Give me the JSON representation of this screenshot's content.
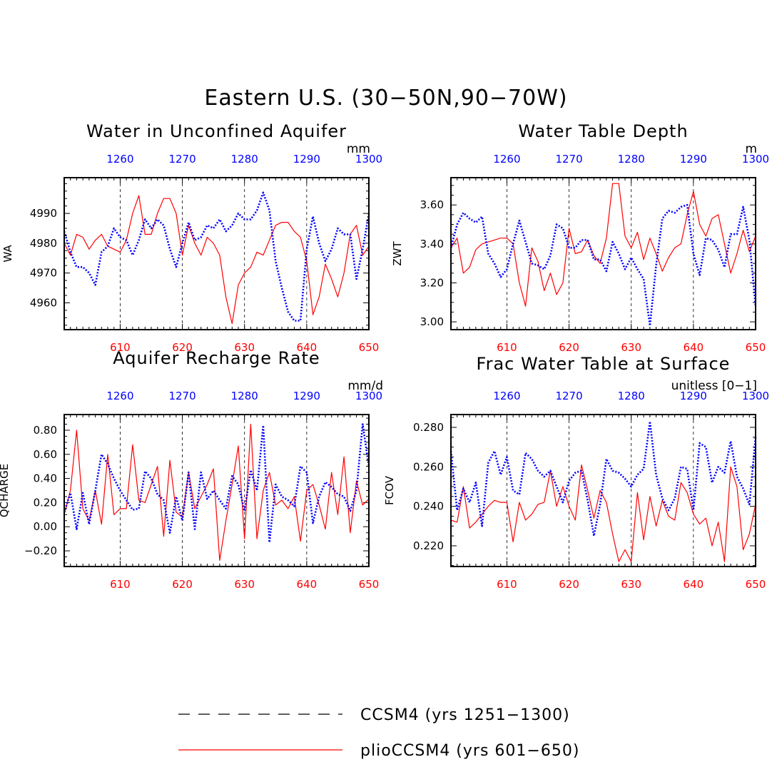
{
  "main_title": "Eastern U.S. (30−50N,90−70W)",
  "colors": {
    "red": "#ff0000",
    "blue": "#0000ff",
    "black": "#000000"
  },
  "legend": [
    {
      "style": "dashed",
      "label": "CCSM4 (yrs 1251−1300)"
    },
    {
      "style": "solid-red",
      "label": "plioCCSM4 (yrs 601−650)"
    }
  ],
  "chart_data": [
    {
      "type": "line",
      "title": "Water in Unconfined Aquifer",
      "units": "mm",
      "ylabel": "WA",
      "ylim": [
        4951,
        5002
      ],
      "yticks": [
        4960,
        4970,
        4980,
        4990
      ],
      "ytick_labels": [
        "4960",
        "4970",
        "4980",
        "4990"
      ],
      "x_bottom_range": [
        601,
        650
      ],
      "x_bottom_ticks": [
        610,
        620,
        630,
        640,
        650
      ],
      "x_top_ticks": [
        1260,
        1270,
        1280,
        1290,
        1300
      ],
      "series": [
        {
          "name": "plioCCSM4 (yrs 601−650)",
          "color": "#ff0000",
          "style": "solid",
          "x_start": 601,
          "values": [
            4980,
            4976,
            4983,
            4982,
            4978,
            4981,
            4983,
            4979,
            4978,
            4977,
            4981,
            4990,
            4996,
            4983,
            4983,
            4990,
            4995,
            4995,
            4990,
            4976,
            4986,
            4980,
            4976,
            4982,
            4980,
            4976,
            4962,
            4953,
            4966,
            4970,
            4972,
            4977,
            4976,
            4981,
            4986,
            4987,
            4987,
            4984,
            4982,
            4974,
            4956,
            4962,
            4973,
            4968,
            4962,
            4970,
            4983,
            4986,
            4976,
            4979
          ]
        },
        {
          "name": "CCSM4 (yrs 1251−1300)",
          "color": "#0000ff",
          "style": "dotted",
          "x_start": 1251,
          "values": [
            4984,
            4977,
            4972,
            4972,
            4970,
            4966,
            4977,
            4979,
            4985,
            4982,
            4981,
            4976,
            4981,
            4988,
            4985,
            4988,
            4986,
            4978,
            4972,
            4980,
            4987,
            4981,
            4982,
            4986,
            4985,
            4988,
            4984,
            4986,
            4990,
            4988,
            4988,
            4991,
            4997,
            4991,
            4974,
            4965,
            4957,
            4954,
            4954,
            4978,
            4989,
            4980,
            4974,
            4978,
            4985,
            4983,
            4983,
            4968,
            4978,
            4990
          ]
        }
      ]
    },
    {
      "type": "line",
      "title": "Water Table Depth",
      "units": "m",
      "ylabel": "ZWT",
      "ylim": [
        2.96,
        3.74
      ],
      "yticks": [
        3.0,
        3.2,
        3.4,
        3.6
      ],
      "ytick_labels": [
        "3.00",
        "3.20",
        "3.40",
        "3.60"
      ],
      "x_bottom_range": [
        601,
        650
      ],
      "x_bottom_ticks": [
        610,
        620,
        630,
        640,
        650
      ],
      "x_top_ticks": [
        1260,
        1270,
        1280,
        1290,
        1300
      ],
      "series": [
        {
          "name": "plioCCSM4 (yrs 601−650)",
          "color": "#ff0000",
          "style": "solid",
          "x_start": 601,
          "values": [
            3.38,
            3.43,
            3.25,
            3.28,
            3.37,
            3.4,
            3.41,
            3.42,
            3.43,
            3.43,
            3.4,
            3.2,
            3.08,
            3.38,
            3.31,
            3.16,
            3.25,
            3.14,
            3.2,
            3.48,
            3.35,
            3.36,
            3.42,
            3.34,
            3.3,
            3.43,
            3.71,
            3.71,
            3.44,
            3.38,
            3.46,
            3.32,
            3.43,
            3.35,
            3.26,
            3.33,
            3.38,
            3.4,
            3.55,
            3.67,
            3.5,
            3.44,
            3.53,
            3.55,
            3.4,
            3.25,
            3.35,
            3.47,
            3.36,
            3.44
          ]
        },
        {
          "name": "CCSM4 (yrs 1251−1300)",
          "color": "#0000ff",
          "style": "dotted",
          "x_start": 1251,
          "values": [
            3.38,
            3.5,
            3.56,
            3.53,
            3.51,
            3.54,
            3.35,
            3.3,
            3.23,
            3.27,
            3.4,
            3.52,
            3.41,
            3.3,
            3.29,
            3.27,
            3.34,
            3.5,
            3.48,
            3.38,
            3.38,
            3.42,
            3.42,
            3.32,
            3.32,
            3.26,
            3.41,
            3.35,
            3.27,
            3.33,
            3.27,
            3.22,
            2.98,
            3.29,
            3.53,
            3.57,
            3.56,
            3.59,
            3.6,
            3.35,
            3.24,
            3.43,
            3.42,
            3.37,
            3.28,
            3.45,
            3.45,
            3.59,
            3.42,
            3.08
          ]
        }
      ]
    },
    {
      "type": "line",
      "title": "Aquifer Recharge Rate",
      "units": "mm/d",
      "ylabel": "QCHARGE",
      "ylim": [
        -0.33,
        0.93
      ],
      "yticks": [
        -0.2,
        0.0,
        0.2,
        0.4,
        0.6,
        0.8
      ],
      "ytick_labels": [
        "−0.20",
        "0.00",
        "0.20",
        "0.40",
        "0.60",
        "0.80"
      ],
      "x_bottom_range": [
        601,
        650
      ],
      "x_bottom_ticks": [
        610,
        620,
        630,
        640,
        650
      ],
      "x_top_ticks": [
        1260,
        1270,
        1280,
        1290,
        1300
      ],
      "series": [
        {
          "name": "plioCCSM4 (yrs 601−650)",
          "color": "#ff0000",
          "style": "solid",
          "x_start": 601,
          "values": [
            0.1,
            0.3,
            0.8,
            0.15,
            0.05,
            0.3,
            0.02,
            0.6,
            0.1,
            0.15,
            0.15,
            0.68,
            0.22,
            0.2,
            0.35,
            0.5,
            -0.08,
            0.55,
            0.12,
            0.08,
            0.45,
            0.15,
            0.25,
            0.35,
            0.48,
            -0.28,
            0.05,
            0.35,
            0.67,
            -0.1,
            0.85,
            -0.1,
            0.3,
            0.45,
            0.18,
            0.22,
            0.15,
            0.25,
            -0.12,
            0.3,
            0.35,
            0.18,
            -0.02,
            0.45,
            0.1,
            0.58,
            -0.05,
            0.38,
            0.18,
            0.23
          ]
        },
        {
          "name": "CCSM4 (yrs 1251−1300)",
          "color": "#0000ff",
          "style": "dotted",
          "x_start": 1251,
          "values": [
            0.12,
            0.28,
            -0.02,
            0.28,
            0.02,
            0.3,
            0.6,
            0.52,
            0.4,
            0.3,
            0.22,
            0.14,
            0.15,
            0.46,
            0.4,
            0.27,
            0.22,
            -0.05,
            0.25,
            0.05,
            0.45,
            -0.02,
            0.45,
            0.23,
            0.3,
            0.22,
            0.15,
            0.42,
            0.35,
            0.13,
            0.47,
            0.3,
            0.84,
            -0.13,
            0.35,
            0.25,
            0.22,
            0.17,
            0.5,
            0.45,
            0.03,
            0.25,
            0.37,
            0.33,
            0.27,
            0.25,
            0.13,
            0.3,
            0.85,
            0.5
          ]
        }
      ]
    },
    {
      "type": "line",
      "title": "Frac Water Table at Surface",
      "units": "unitless [0−1]",
      "ylabel": "FCOV",
      "ylim": [
        0.2095,
        0.2865
      ],
      "yticks": [
        0.22,
        0.24,
        0.26,
        0.28
      ],
      "ytick_labels": [
        "0.220",
        "0.240",
        "0.260",
        "0.280"
      ],
      "x_bottom_range": [
        601,
        650
      ],
      "x_bottom_ticks": [
        610,
        620,
        630,
        640,
        650
      ],
      "x_top_ticks": [
        1260,
        1270,
        1280,
        1290,
        1300
      ],
      "series": [
        {
          "name": "plioCCSM4 (yrs 601−650)",
          "color": "#ff0000",
          "style": "solid",
          "x_start": 601,
          "values": [
            0.233,
            0.232,
            0.25,
            0.229,
            0.232,
            0.236,
            0.24,
            0.243,
            0.242,
            0.242,
            0.222,
            0.242,
            0.233,
            0.236,
            0.241,
            0.242,
            0.258,
            0.24,
            0.25,
            0.24,
            0.233,
            0.261,
            0.248,
            0.234,
            0.248,
            0.242,
            0.226,
            0.212,
            0.218,
            0.212,
            0.247,
            0.223,
            0.245,
            0.23,
            0.243,
            0.235,
            0.233,
            0.252,
            0.247,
            0.236,
            0.231,
            0.234,
            0.22,
            0.232,
            0.212,
            0.26,
            0.25,
            0.218,
            0.226,
            0.241
          ]
        },
        {
          "name": "CCSM4 (yrs 1251−1300)",
          "color": "#0000ff",
          "style": "dotted",
          "x_start": 1251,
          "values": [
            0.268,
            0.238,
            0.249,
            0.242,
            0.252,
            0.23,
            0.262,
            0.268,
            0.256,
            0.265,
            0.248,
            0.246,
            0.267,
            0.264,
            0.258,
            0.255,
            0.258,
            0.25,
            0.242,
            0.253,
            0.257,
            0.258,
            0.243,
            0.225,
            0.241,
            0.264,
            0.258,
            0.257,
            0.254,
            0.25,
            0.256,
            0.259,
            0.283,
            0.256,
            0.244,
            0.238,
            0.244,
            0.26,
            0.259,
            0.238,
            0.272,
            0.27,
            0.252,
            0.26,
            0.257,
            0.273,
            0.255,
            0.249,
            0.241,
            0.275
          ]
        }
      ]
    }
  ]
}
